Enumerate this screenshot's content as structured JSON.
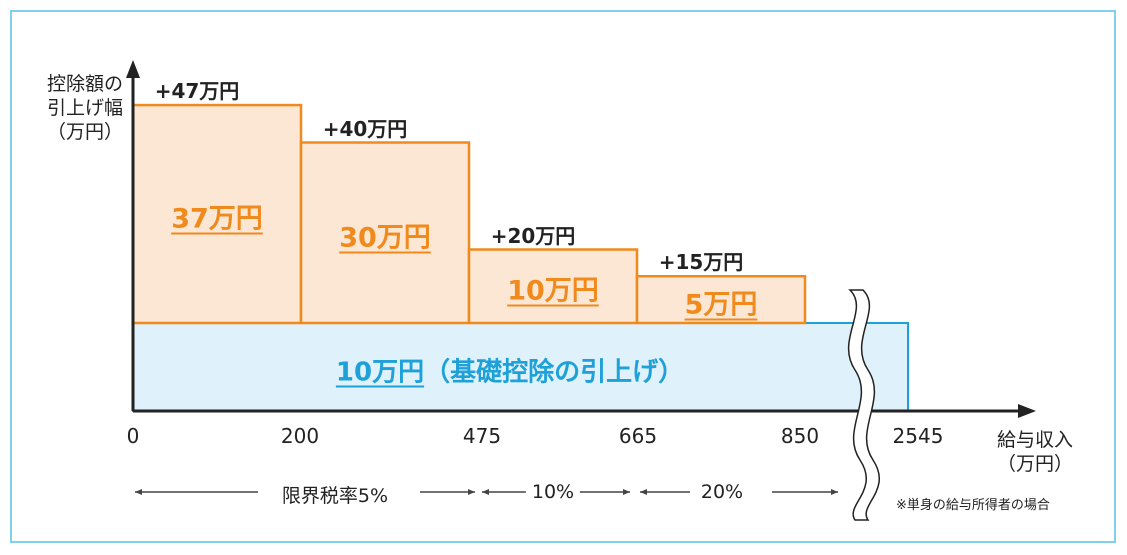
{
  "chart_data": {
    "type": "bar",
    "subtype": "step",
    "ylabel": [
      "控除額の",
      "引上げ幅",
      "（万円）"
    ],
    "xlabel": [
      "給与収入",
      "（万円）"
    ],
    "x_ticks": [
      "0",
      "200",
      "475",
      "665",
      "850",
      "2545"
    ],
    "base": {
      "value": 10,
      "label_value": "10万円",
      "label_rest": "（基礎控除の引上げ）",
      "x_range": [
        0,
        2545
      ]
    },
    "bins": [
      {
        "x_range": [
          0,
          200
        ],
        "extra": 37,
        "extra_label": "37万円",
        "total_label": "+47万円"
      },
      {
        "x_range": [
          200,
          475
        ],
        "extra": 30,
        "extra_label": "30万円",
        "total_label": "+40万円"
      },
      {
        "x_range": [
          475,
          665
        ],
        "extra": 10,
        "extra_label": "10万円",
        "total_label": "+20万円"
      },
      {
        "x_range": [
          665,
          850
        ],
        "extra": 5,
        "extra_label": "5万円",
        "total_label": "+15万円"
      }
    ],
    "axis_break": "850-2545",
    "rates": [
      {
        "label": "限界税率5%",
        "x_range": [
          0,
          475
        ]
      },
      {
        "label": "10%",
        "x_range": [
          475,
          665
        ]
      },
      {
        "label": "20%",
        "x_range": [
          665,
          850
        ]
      }
    ],
    "note": "※単身の給与所得者の場合",
    "colors": {
      "bin_fill": "#fbe7d4",
      "bin_stroke": "#f08a1c",
      "base_fill": "#dff1fb",
      "base_stroke": "#1ea0d8",
      "frame": "#7fd0ee"
    }
  }
}
